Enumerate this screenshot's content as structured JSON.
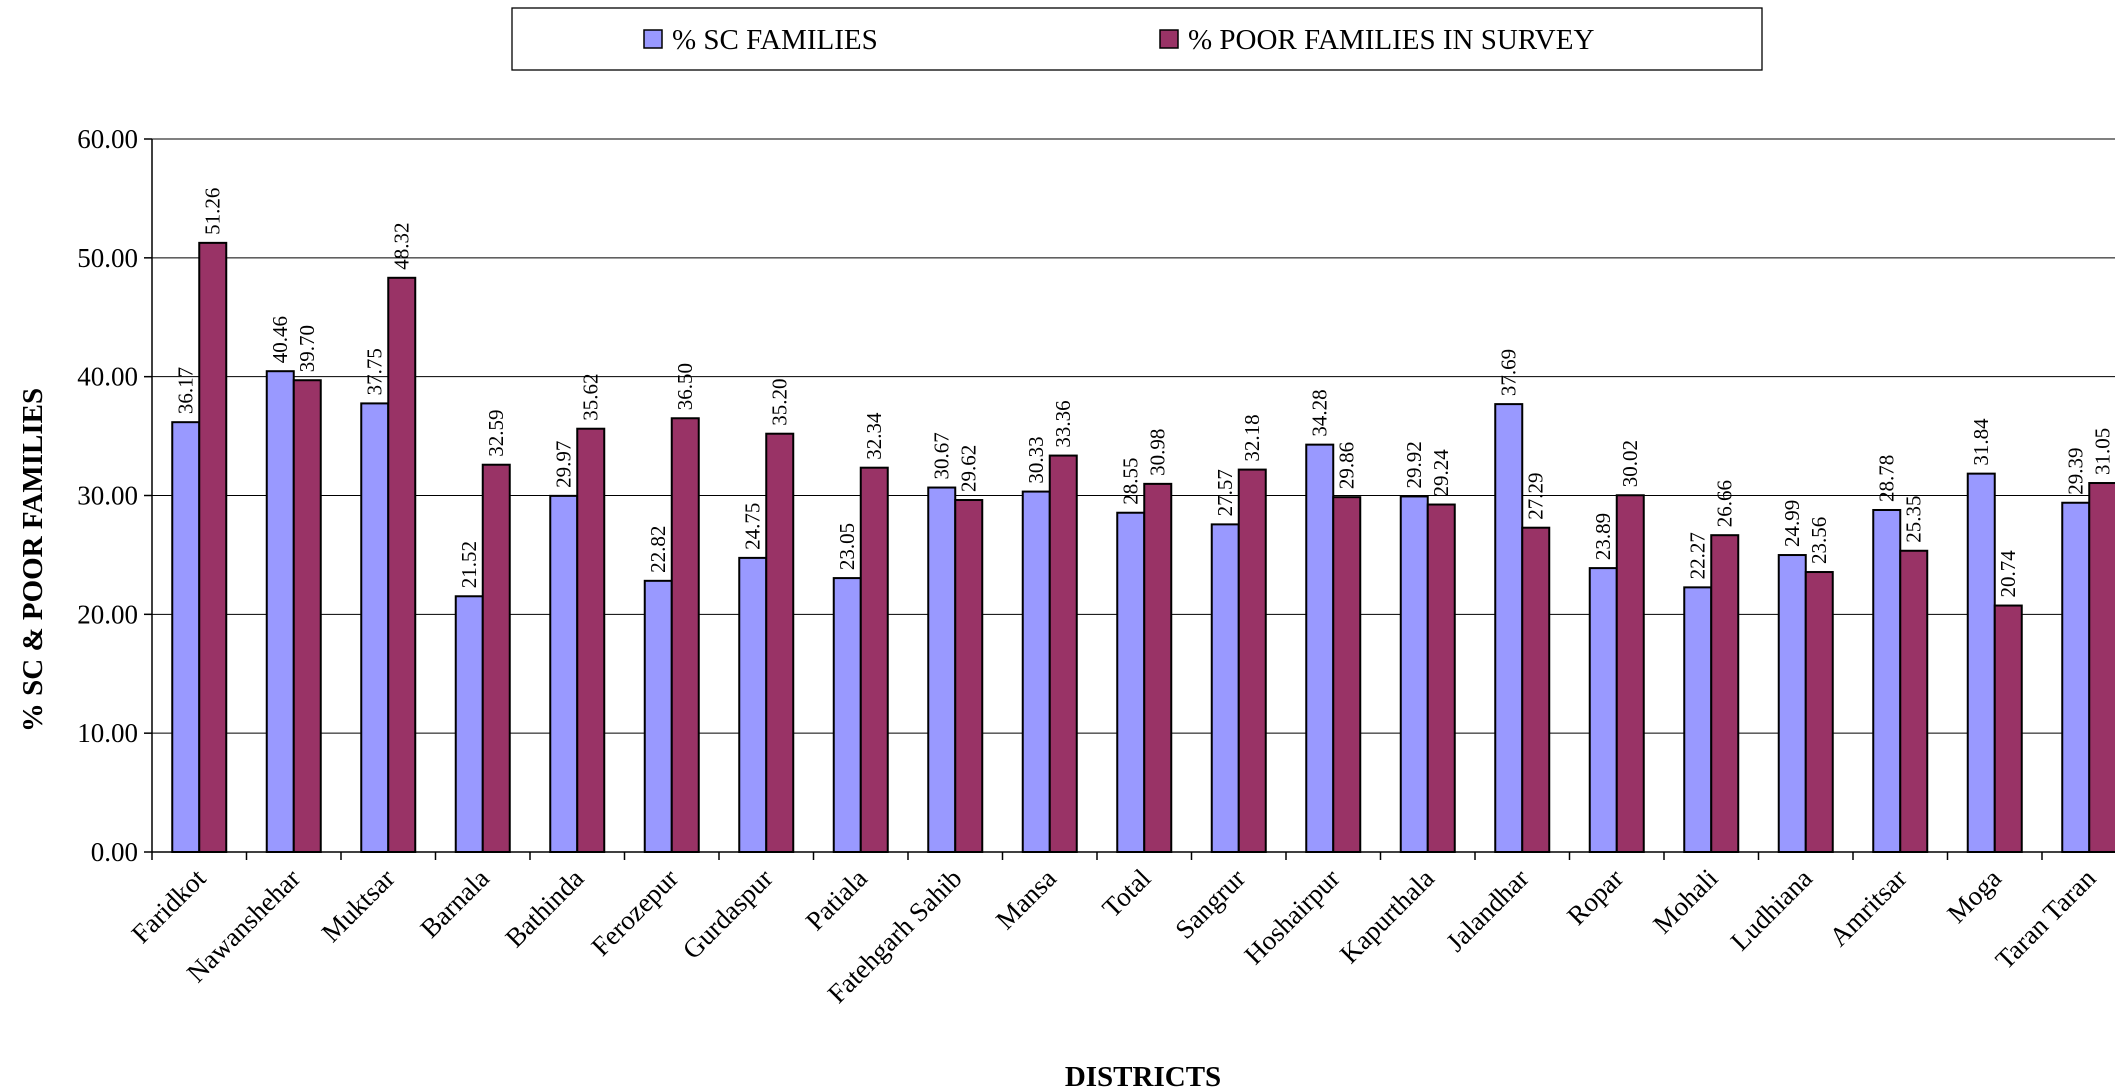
{
  "chart_data": {
    "type": "bar",
    "xlabel": "DISTRICTS",
    "ylabel": "% SC & POOR FAMILIES",
    "ylim": [
      0,
      60
    ],
    "yticks": [
      "0.00",
      "10.00",
      "20.00",
      "30.00",
      "40.00",
      "50.00",
      "60.00"
    ],
    "grid": true,
    "legend_position": "top",
    "categories": [
      "Faridkot",
      "Nawanshehar",
      "Muktsar",
      "Barnala",
      "Bathinda",
      "Ferozepur",
      "Gurdaspur",
      "Patiala",
      "Fatehgarh Sahib",
      "Mansa",
      "Total",
      "Sangrur",
      "Hoshairpur",
      "Kapurthala",
      "Jalandhar",
      "Ropar",
      "Mohali",
      "Ludhiana",
      "Amritsar",
      "Moga",
      "Taran Taran"
    ],
    "series": [
      {
        "name": "% SC FAMILIES",
        "color": "#9999ff",
        "values": [
          36.17,
          40.46,
          37.75,
          21.52,
          29.97,
          22.82,
          24.75,
          23.05,
          30.67,
          30.33,
          28.55,
          27.57,
          34.28,
          29.92,
          37.69,
          23.89,
          22.27,
          24.99,
          28.78,
          31.84,
          29.39
        ],
        "labels": [
          "36.17",
          "40.46",
          "37.75",
          "21.52",
          "29.97",
          "22.82",
          "24.75",
          "23.05",
          "30.67",
          "30.33",
          "28.55",
          "27.57",
          "34.28",
          "29.92",
          "37.69",
          "23.89",
          "22.27",
          "24.99",
          "28.78",
          "31.84",
          "29.39"
        ]
      },
      {
        "name": "% POOR FAMILIES IN SURVEY",
        "color": "#993366",
        "values": [
          51.26,
          39.7,
          48.32,
          32.59,
          35.62,
          36.5,
          35.2,
          32.34,
          29.62,
          33.36,
          30.98,
          32.18,
          29.86,
          29.24,
          27.29,
          30.02,
          26.66,
          23.56,
          25.35,
          20.74,
          31.05
        ],
        "labels": [
          "51.26",
          "39.70",
          "48.32",
          "32.59",
          "35.62",
          "36.50",
          "35.20",
          "32.34",
          "29.62",
          "33.36",
          "30.98",
          "32.18",
          "29.86",
          "29.24",
          "27.29",
          "30.02",
          "26.66",
          "23.56",
          "25.35",
          "20.74",
          "31.05"
        ]
      }
    ]
  }
}
